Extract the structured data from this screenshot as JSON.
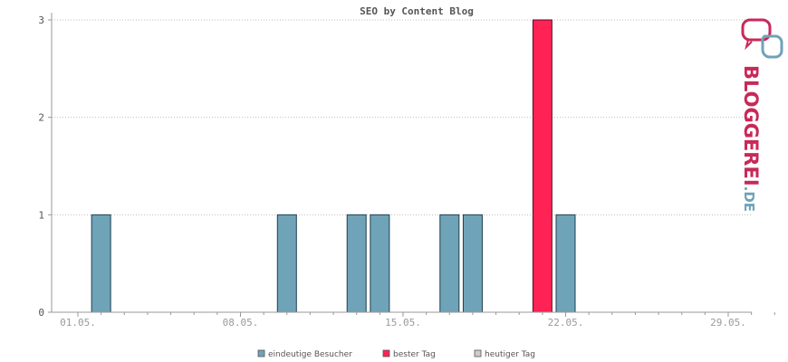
{
  "chart_data": {
    "type": "bar",
    "title": "SEO by Content Blog",
    "xlabel": "",
    "ylabel": "",
    "ylim": [
      0,
      3
    ],
    "yticks": [
      0,
      1,
      2,
      3
    ],
    "x_start_day": 1,
    "x_end_day": 31,
    "xtick_labels": [
      "01.05.",
      "08.05.",
      "15.05.",
      "22.05.",
      "29.05."
    ],
    "grid": true,
    "legend_position": "bottom",
    "series": [
      {
        "name": "eindeutige Besucher",
        "color": "#6fa3b8",
        "points": [
          {
            "day": "02.05.",
            "value": 1
          },
          {
            "day": "10.05.",
            "value": 1
          },
          {
            "day": "13.05.",
            "value": 1
          },
          {
            "day": "14.05.",
            "value": 1
          },
          {
            "day": "17.05.",
            "value": 1
          },
          {
            "day": "18.05.",
            "value": 1
          },
          {
            "day": "21.05.",
            "value": 3
          },
          {
            "day": "22.05.",
            "value": 1
          }
        ]
      },
      {
        "name": "bester Tag",
        "color": "#ff2255",
        "points": [
          {
            "day": "21.05.",
            "value": 3
          }
        ]
      },
      {
        "name": "heutiger Tag",
        "color": "#cccccc",
        "points": []
      }
    ]
  },
  "logo": {
    "text_main": "BLOGGEREI",
    "text_suffix": ".DE",
    "color_main": "#c8285a",
    "color_suffix": "#6fa3b8"
  }
}
